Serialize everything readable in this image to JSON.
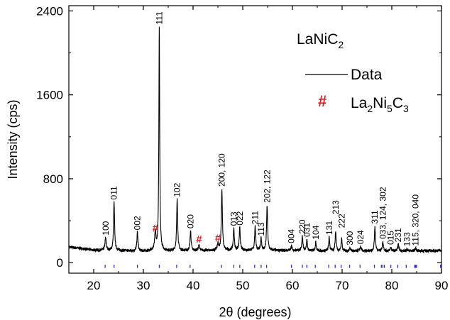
{
  "chart_data": {
    "type": "line",
    "xlabel": "2θ (degrees)",
    "ylabel": "Intensity (cps)",
    "xlim": [
      15,
      90
    ],
    "ylim": [
      -100,
      2450
    ],
    "x_ticks": [
      20,
      30,
      40,
      50,
      60,
      70,
      80,
      90
    ],
    "y_ticks": [
      0,
      800,
      1600,
      2400
    ],
    "title": {
      "base": "LaNiC",
      "sub": "2"
    },
    "legend": {
      "placement": "top-right",
      "entries": [
        {
          "type": "line",
          "label": "Data",
          "color": "#000000"
        },
        {
          "type": "marker",
          "marker": "#",
          "color": "#e8141c",
          "label_parts": [
            {
              "t": "La",
              "sub": false
            },
            {
              "t": "2",
              "sub": true
            },
            {
              "t": "Ni",
              "sub": false
            },
            {
              "t": "5",
              "sub": true
            },
            {
              "t": "C",
              "sub": false
            },
            {
              "t": "3",
              "sub": true
            }
          ]
        }
      ]
    },
    "series": [
      {
        "name": "Data",
        "color": "#000000",
        "background": [
          [
            15,
            150
          ],
          [
            20,
            120
          ],
          [
            30,
            110
          ],
          [
            40,
            115
          ],
          [
            50,
            120
          ],
          [
            60,
            115
          ],
          [
            70,
            110
          ],
          [
            80,
            110
          ],
          [
            90,
            115
          ]
        ],
        "peaks": [
          {
            "x": 22.4,
            "y": 235,
            "w": 0.3
          },
          {
            "x": 24.1,
            "y": 575,
            "w": 0.25
          },
          {
            "x": 28.8,
            "y": 290,
            "w": 0.25
          },
          {
            "x": 32.4,
            "y": 280,
            "w": 0.35
          },
          {
            "x": 33.2,
            "y": 2245,
            "w": 0.2
          },
          {
            "x": 36.8,
            "y": 600,
            "w": 0.25
          },
          {
            "x": 39.5,
            "y": 300,
            "w": 0.25
          },
          {
            "x": 41.2,
            "y": 165,
            "w": 0.3
          },
          {
            "x": 45.0,
            "y": 175,
            "w": 0.3
          },
          {
            "x": 45.8,
            "y": 700,
            "w": 0.25
          },
          {
            "x": 48.2,
            "y": 325,
            "w": 0.25
          },
          {
            "x": 49.4,
            "y": 330,
            "w": 0.25
          },
          {
            "x": 52.5,
            "y": 340,
            "w": 0.25
          },
          {
            "x": 53.7,
            "y": 230,
            "w": 0.25
          },
          {
            "x": 54.9,
            "y": 540,
            "w": 0.25
          },
          {
            "x": 59.8,
            "y": 160,
            "w": 0.3
          },
          {
            "x": 62.0,
            "y": 250,
            "w": 0.25
          },
          {
            "x": 62.9,
            "y": 215,
            "w": 0.25
          },
          {
            "x": 64.7,
            "y": 195,
            "w": 0.25
          },
          {
            "x": 67.4,
            "y": 240,
            "w": 0.25
          },
          {
            "x": 68.7,
            "y": 295,
            "w": 0.25
          },
          {
            "x": 69.9,
            "y": 225,
            "w": 0.25
          },
          {
            "x": 71.6,
            "y": 140,
            "w": 0.3
          },
          {
            "x": 73.7,
            "y": 150,
            "w": 0.3
          },
          {
            "x": 76.6,
            "y": 340,
            "w": 0.25
          },
          {
            "x": 78.2,
            "y": 195,
            "w": 0.3
          },
          {
            "x": 79.8,
            "y": 145,
            "w": 0.3
          },
          {
            "x": 81.3,
            "y": 170,
            "w": 0.3
          },
          {
            "x": 83.1,
            "y": 130,
            "w": 0.3
          },
          {
            "x": 84.8,
            "y": 135,
            "w": 0.3
          }
        ]
      }
    ],
    "peak_labels": [
      {
        "x": 22.4,
        "y": 240,
        "text": "100"
      },
      {
        "x": 24.1,
        "y": 580,
        "text": "011"
      },
      {
        "x": 28.8,
        "y": 290,
        "text": "002"
      },
      {
        "x": 33.2,
        "y": 2250,
        "text": "111"
      },
      {
        "x": 36.8,
        "y": 605,
        "text": "102"
      },
      {
        "x": 39.5,
        "y": 305,
        "text": "020"
      },
      {
        "x": 45.8,
        "y": 705,
        "text": "200, 120"
      },
      {
        "x": 48.2,
        "y": 330,
        "text": "013"
      },
      {
        "x": 49.4,
        "y": 335,
        "text": "022"
      },
      {
        "x": 52.5,
        "y": 345,
        "text": "211"
      },
      {
        "x": 53.7,
        "y": 235,
        "text": "113"
      },
      {
        "x": 54.9,
        "y": 550,
        "text": "202, 122"
      },
      {
        "x": 59.8,
        "y": 165,
        "text": "004"
      },
      {
        "x": 62.0,
        "y": 255,
        "text": "220"
      },
      {
        "x": 62.9,
        "y": 225,
        "text": "031"
      },
      {
        "x": 64.7,
        "y": 200,
        "text": "104"
      },
      {
        "x": 67.4,
        "y": 245,
        "text": "131"
      },
      {
        "x": 68.7,
        "y": 440,
        "text": "213"
      },
      {
        "x": 69.9,
        "y": 310,
        "text": "222"
      },
      {
        "x": 71.6,
        "y": 145,
        "text": "300"
      },
      {
        "x": 73.7,
        "y": 155,
        "text": "024"
      },
      {
        "x": 76.6,
        "y": 350,
        "text": "311"
      },
      {
        "x": 78.2,
        "y": 205,
        "text": "033, 124, 302"
      },
      {
        "x": 79.8,
        "y": 150,
        "text": "015"
      },
      {
        "x": 81.3,
        "y": 175,
        "text": "231"
      },
      {
        "x": 83.1,
        "y": 135,
        "text": "133"
      },
      {
        "x": 84.8,
        "y": 140,
        "text": "115, 320, 040"
      }
    ],
    "impurity_markers": [
      {
        "x": 32.4,
        "y": 270,
        "marker": "#"
      },
      {
        "x": 41.2,
        "y": 165,
        "marker": "#"
      },
      {
        "x": 45.0,
        "y": 175,
        "marker": "#"
      }
    ],
    "reflection_ticks": {
      "color": "#2a2ad8",
      "y_range": [
        -20,
        -50
      ],
      "positions": [
        22.3,
        24.1,
        28.8,
        33.2,
        36.7,
        39.4,
        45.7,
        48.2,
        49.4,
        52.4,
        53.7,
        54.8,
        59.8,
        62.0,
        62.9,
        64.6,
        67.3,
        68.6,
        69.8,
        71.5,
        73.6,
        76.5,
        77.9,
        78.2,
        78.5,
        79.8,
        81.2,
        82.9,
        84.6,
        84.8,
        85.0,
        89.8
      ]
    }
  }
}
